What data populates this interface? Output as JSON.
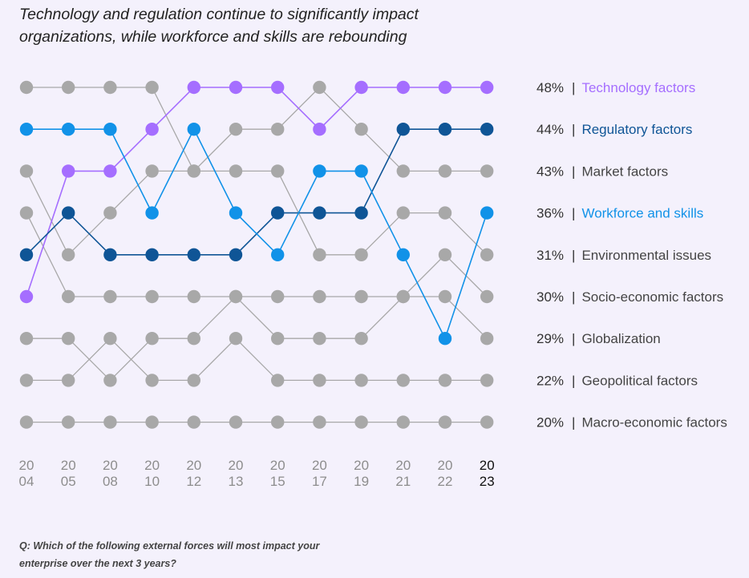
{
  "header": {
    "title_line1": "Technology and regulation continue to significantly impact",
    "title_line2": "organizations, while workforce and skills are rebounding"
  },
  "footer": {
    "question_line1": "Q: Which of the following external forces will most impact your",
    "question_line2": "enterprise over the next 3 years?"
  },
  "colors": {
    "technology": "#a56eff",
    "regulatory": "#0f5596",
    "workforce": "#1192e8",
    "other": "#a8a8a8",
    "text": "#444444"
  },
  "chart_data": {
    "type": "line",
    "subtype": "bump",
    "x": [
      "2004",
      "2005",
      "2008",
      "2010",
      "2012",
      "2013",
      "2015",
      "2017",
      "2019",
      "2021",
      "2022",
      "2023"
    ],
    "x_tick_labels": [
      [
        "20",
        "04"
      ],
      [
        "20",
        "05"
      ],
      [
        "20",
        "08"
      ],
      [
        "20",
        "10"
      ],
      [
        "20",
        "12"
      ],
      [
        "20",
        "13"
      ],
      [
        "20",
        "15"
      ],
      [
        "20",
        "17"
      ],
      [
        "20",
        "19"
      ],
      [
        "20",
        "21"
      ],
      [
        "20",
        "22"
      ],
      [
        "20",
        "23"
      ]
    ],
    "y_axis": "rank (1 = top)",
    "ranks_count": 9,
    "series": [
      {
        "name": "Technology factors",
        "pct": "48%",
        "highlight": "technology",
        "ranks": [
          6,
          3,
          3,
          2,
          1,
          1,
          1,
          2,
          1,
          1,
          1,
          1
        ]
      },
      {
        "name": "Regulatory factors",
        "pct": "44%",
        "highlight": "regulatory",
        "ranks": [
          5,
          4,
          5,
          5,
          5,
          5,
          4,
          4,
          4,
          2,
          2,
          2
        ]
      },
      {
        "name": "Market factors",
        "pct": "43%",
        "highlight": "other",
        "ranks": [
          3,
          5,
          4,
          3,
          3,
          2,
          2,
          1,
          2,
          3,
          3,
          3
        ]
      },
      {
        "name": "Workforce and skills",
        "pct": "36%",
        "highlight": "workforce",
        "ranks": [
          2,
          2,
          2,
          4,
          2,
          4,
          5,
          3,
          3,
          5,
          7,
          4
        ]
      },
      {
        "name": "Environmental issues",
        "pct": "31%",
        "highlight": "other",
        "ranks": [
          1,
          1,
          1,
          1,
          3,
          3,
          3,
          5,
          5,
          4,
          4,
          5
        ]
      },
      {
        "name": "Socio-economic factors",
        "pct": "30%",
        "highlight": "other",
        "ranks": [
          4,
          6,
          6,
          6,
          6,
          6,
          6,
          6,
          6,
          6,
          5,
          6
        ]
      },
      {
        "name": "Globalization",
        "pct": "29%",
        "highlight": "other",
        "ranks": [
          7,
          7,
          8,
          7,
          7,
          6,
          7,
          7,
          7,
          6,
          6,
          7
        ]
      },
      {
        "name": "Geopolitical factors",
        "pct": "22%",
        "highlight": "other",
        "ranks": [
          8,
          8,
          7,
          8,
          8,
          7,
          8,
          8,
          8,
          8,
          8,
          8
        ]
      },
      {
        "name": "Macro-economic factors",
        "pct": "20%",
        "highlight": "other",
        "ranks": [
          9,
          9,
          9,
          9,
          9,
          9,
          9,
          9,
          9,
          9,
          9,
          9
        ]
      }
    ],
    "legend": {
      "placement": "right",
      "entries": [
        {
          "pct": "48%",
          "label": "Technology factors",
          "highlight": "technology"
        },
        {
          "pct": "44%",
          "label": "Regulatory factors",
          "highlight": "regulatory"
        },
        {
          "pct": "43%",
          "label": "Market factors",
          "highlight": "other"
        },
        {
          "pct": "36%",
          "label": "Workforce and skills",
          "highlight": "workforce"
        },
        {
          "pct": "31%",
          "label": "Environmental issues",
          "highlight": "other"
        },
        {
          "pct": "30%",
          "label": "Socio-economic factors",
          "highlight": "other"
        },
        {
          "pct": "29%",
          "label": "Globalization",
          "highlight": "other"
        },
        {
          "pct": "22%",
          "label": "Geopolitical factors",
          "highlight": "other"
        },
        {
          "pct": "20%",
          "label": "Macro-economic factors",
          "highlight": "other"
        }
      ],
      "separator": "|"
    }
  }
}
